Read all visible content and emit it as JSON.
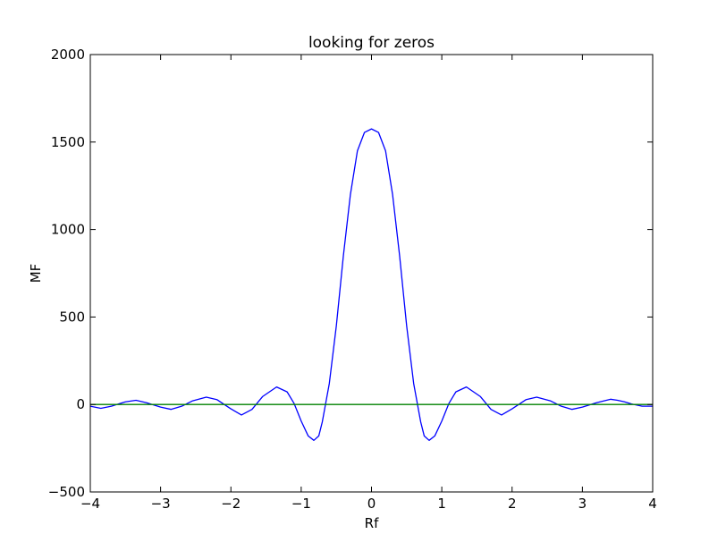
{
  "chart_data": {
    "type": "line",
    "title": "looking for zeros",
    "xlabel": "Rf",
    "ylabel": "MF",
    "xlim": [
      -4,
      4
    ],
    "ylim": [
      -500,
      2000
    ],
    "xticks": [
      -4,
      -3,
      -2,
      -1,
      0,
      1,
      2,
      3,
      4
    ],
    "xtick_labels": [
      "−4",
      "−3",
      "−2",
      "−1",
      "0",
      "1",
      "2",
      "3",
      "4"
    ],
    "yticks": [
      -500,
      0,
      500,
      1000,
      1500,
      2000
    ],
    "ytick_labels": [
      "−500",
      "0",
      "500",
      "1000",
      "1500",
      "2000"
    ],
    "grid": false,
    "series": [
      {
        "color": "#0000ff",
        "x": [
          -4.0,
          -3.85,
          -3.7,
          -3.6,
          -3.5,
          -3.35,
          -3.2,
          -3.0,
          -2.85,
          -2.7,
          -2.55,
          -2.35,
          -2.2,
          -2.0,
          -1.85,
          -1.7,
          -1.55,
          -1.35,
          -1.2,
          -1.1,
          -1.0,
          -0.9,
          -0.82,
          -0.75,
          -0.7,
          -0.6,
          -0.5,
          -0.4,
          -0.3,
          -0.2,
          -0.1,
          0.0,
          0.1,
          0.2,
          0.3,
          0.4,
          0.5,
          0.6,
          0.7,
          0.75,
          0.82,
          0.9,
          1.0,
          1.1,
          1.2,
          1.35,
          1.55,
          1.7,
          1.85,
          2.0,
          2.2,
          2.35,
          2.55,
          2.7,
          2.85,
          3.0,
          3.2,
          3.4,
          3.5,
          3.6,
          3.7,
          3.85,
          4.0
        ],
        "y": [
          -10,
          -22,
          -10,
          3,
          15,
          24,
          10,
          -15,
          -28,
          -10,
          20,
          42,
          28,
          -25,
          -60,
          -28,
          45,
          100,
          72,
          5,
          -95,
          -180,
          -205,
          -180,
          -100,
          120,
          450,
          850,
          1200,
          1450,
          1555,
          1575,
          1555,
          1450,
          1200,
          850,
          450,
          120,
          -100,
          -180,
          -205,
          -180,
          -95,
          5,
          72,
          100,
          45,
          -28,
          -60,
          -25,
          28,
          42,
          20,
          -10,
          -28,
          -15,
          10,
          30,
          24,
          15,
          3,
          -10,
          -10
        ]
      },
      {
        "color": "#008000",
        "x": [
          -4,
          4
        ],
        "y": [
          0,
          0
        ]
      }
    ]
  }
}
